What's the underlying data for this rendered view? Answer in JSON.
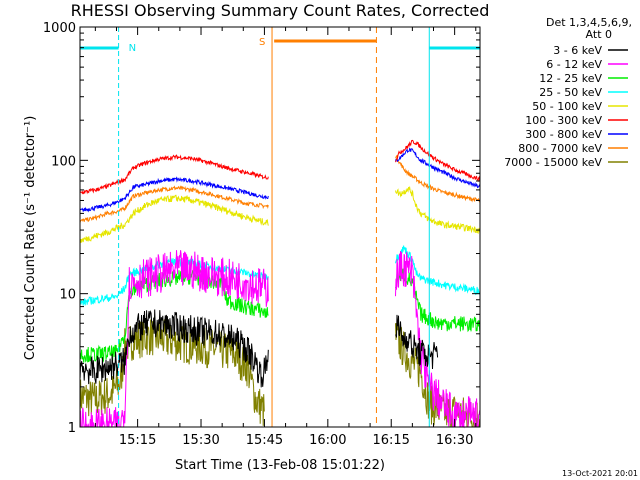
{
  "chart_data": {
    "type": "line",
    "title": "RHESSI Observing Summary Count Rates, Corrected",
    "xlabel": "Start Time (13-Feb-08 15:01:22)",
    "ylabel": "Corrected Count Rate (s⁻¹ detector⁻¹)",
    "y_scale": "log",
    "ylim": [
      1,
      1000
    ],
    "xlim_minutes_after_15_00": [
      1.37,
      96.0
    ],
    "x_ticks": [
      {
        "label": "15:15",
        "minutes": 15
      },
      {
        "label": "15:30",
        "minutes": 30
      },
      {
        "label": "15:45",
        "minutes": 45
      },
      {
        "label": "16:00",
        "minutes": 60
      },
      {
        "label": "16:15",
        "minutes": 75
      },
      {
        "label": "16:30",
        "minutes": 90
      }
    ],
    "y_ticks": [
      {
        "label": "1",
        "value": 1
      },
      {
        "label": "10",
        "value": 10
      },
      {
        "label": "100",
        "value": 100
      },
      {
        "label": "1000",
        "value": 1000
      }
    ],
    "legend_header": [
      "Det 1,3,4,5,6,9,",
      "Att 0"
    ],
    "legend_position": "right",
    "timestamp": "13-Oct-2021 20:01",
    "markers": {
      "night": {
        "label": "N",
        "color": "#00e5ee",
        "bars": [
          [
            1.37,
            10.5
          ],
          [
            84.0,
            96.0
          ]
        ],
        "lines": [
          10.5,
          84.0,
          96.0
        ]
      },
      "saa": {
        "label": "S",
        "color": "#ff7f00",
        "bar": [
          47.3,
          71.5
        ],
        "solid_line": 46.8,
        "dashed_line": 71.5
      }
    },
    "series": [
      {
        "name": "3 - 6 keV",
        "color": "#000000",
        "gap": [
          46,
          76
        ],
        "points": [
          [
            1.4,
            2.9
          ],
          [
            4,
            2.6
          ],
          [
            8,
            2.8
          ],
          [
            12,
            3.1
          ],
          [
            13,
            5
          ],
          [
            15,
            5.5
          ],
          [
            18,
            6
          ],
          [
            22,
            5.8
          ],
          [
            26,
            5.5
          ],
          [
            30,
            5.2
          ],
          [
            34,
            5
          ],
          [
            38,
            4.5
          ],
          [
            41,
            3.8
          ],
          [
            43,
            3
          ],
          [
            44,
            2.5
          ],
          [
            45,
            2.6
          ],
          [
            46,
            3.5
          ]
        ],
        "points2": [
          [
            76,
            6
          ],
          [
            77,
            5.2
          ],
          [
            78,
            4.5
          ],
          [
            79,
            4.8
          ],
          [
            80,
            4
          ],
          [
            82,
            3.6
          ],
          [
            84,
            3.4
          ],
          [
            86,
            3.5
          ]
        ]
      },
      {
        "name": "6 - 12 keV",
        "color": "#ff00ff",
        "gap": [
          46,
          76
        ],
        "points": [
          [
            1.4,
            1
          ],
          [
            11,
            1
          ],
          [
            12,
            1.5
          ],
          [
            13,
            12
          ],
          [
            16,
            13
          ],
          [
            20,
            14
          ],
          [
            24,
            15
          ],
          [
            28,
            15
          ],
          [
            32,
            14
          ],
          [
            36,
            13
          ],
          [
            40,
            12.5
          ],
          [
            43,
            11.5
          ],
          [
            45,
            11
          ],
          [
            46,
            11
          ]
        ],
        "points2": [
          [
            76,
            13
          ],
          [
            77,
            15
          ],
          [
            78,
            16
          ],
          [
            79,
            15
          ],
          [
            80,
            14
          ],
          [
            81,
            7
          ],
          [
            82,
            3.5
          ],
          [
            84,
            2
          ],
          [
            87,
            1.5
          ],
          [
            90,
            1.2
          ],
          [
            96,
            1.2
          ]
        ]
      },
      {
        "name": "12 - 25 keV",
        "color": "#00ee00",
        "gap": [
          46,
          76
        ],
        "points": [
          [
            1.4,
            3.5
          ],
          [
            5,
            3.5
          ],
          [
            10,
            3.6
          ],
          [
            12,
            5
          ],
          [
            13,
            10
          ],
          [
            16,
            11.5
          ],
          [
            20,
            12.5
          ],
          [
            24,
            13
          ],
          [
            28,
            13.5
          ],
          [
            32,
            12.5
          ],
          [
            35,
            12
          ],
          [
            36,
            9
          ],
          [
            40,
            8
          ],
          [
            44,
            7.5
          ],
          [
            46,
            7
          ]
        ],
        "points2": [
          [
            76,
            12
          ],
          [
            77,
            13.5
          ],
          [
            78,
            14
          ],
          [
            79,
            13
          ],
          [
            80,
            12
          ],
          [
            81,
            9
          ],
          [
            82,
            7
          ],
          [
            84,
            6.5
          ],
          [
            86,
            6
          ],
          [
            90,
            6
          ],
          [
            96,
            5.8
          ]
        ]
      },
      {
        "name": "25 - 50 keV",
        "color": "#00ffff",
        "gap": [
          46,
          76
        ],
        "points": [
          [
            1.4,
            8.5
          ],
          [
            5,
            9
          ],
          [
            10,
            9.5
          ],
          [
            12,
            11
          ],
          [
            13,
            14
          ],
          [
            16,
            15
          ],
          [
            20,
            16.5
          ],
          [
            24,
            17.5
          ],
          [
            28,
            17
          ],
          [
            32,
            16
          ],
          [
            36,
            15
          ],
          [
            40,
            14.5
          ],
          [
            44,
            13.5
          ],
          [
            46,
            13.5
          ]
        ],
        "points2": [
          [
            76,
            18
          ],
          [
            77,
            20
          ],
          [
            78,
            22
          ],
          [
            79,
            20
          ],
          [
            80,
            18
          ],
          [
            81,
            14
          ],
          [
            82,
            13
          ],
          [
            84,
            12.5
          ],
          [
            88,
            11.5
          ],
          [
            92,
            11
          ],
          [
            96,
            10.5
          ]
        ]
      },
      {
        "name": "50 - 100 keV",
        "color": "#e6e600",
        "gap": [
          46,
          76
        ],
        "points": [
          [
            1.4,
            25
          ],
          [
            5,
            27
          ],
          [
            8,
            29
          ],
          [
            11,
            32
          ],
          [
            12,
            33
          ],
          [
            14,
            40
          ],
          [
            17,
            46
          ],
          [
            20,
            50
          ],
          [
            24,
            52
          ],
          [
            28,
            50
          ],
          [
            32,
            46
          ],
          [
            36,
            42
          ],
          [
            40,
            38
          ],
          [
            44,
            35
          ],
          [
            46,
            34
          ]
        ],
        "points2": [
          [
            76,
            60
          ],
          [
            77,
            56
          ],
          [
            78,
            58
          ],
          [
            79,
            62
          ],
          [
            80,
            56
          ],
          [
            81,
            45
          ],
          [
            82,
            40
          ],
          [
            84,
            36
          ],
          [
            87,
            33
          ],
          [
            90,
            32
          ],
          [
            93,
            31
          ],
          [
            96,
            30
          ]
        ]
      },
      {
        "name": "100 - 300 keV",
        "color": "#ff0000",
        "gap": [
          46,
          76
        ],
        "points": [
          [
            1.4,
            57
          ],
          [
            5,
            60
          ],
          [
            8,
            64
          ],
          [
            11,
            70
          ],
          [
            12,
            72
          ],
          [
            14,
            88
          ],
          [
            17,
            96
          ],
          [
            20,
            102
          ],
          [
            24,
            106
          ],
          [
            28,
            103
          ],
          [
            32,
            96
          ],
          [
            36,
            88
          ],
          [
            40,
            82
          ],
          [
            44,
            76
          ],
          [
            46,
            74
          ]
        ],
        "points2": [
          [
            76,
            100
          ],
          [
            77,
            115
          ],
          [
            78,
            120
          ],
          [
            79,
            128
          ],
          [
            80,
            138
          ],
          [
            81,
            135
          ],
          [
            82,
            125
          ],
          [
            84,
            110
          ],
          [
            87,
            95
          ],
          [
            90,
            85
          ],
          [
            93,
            78
          ],
          [
            96,
            72
          ]
        ]
      },
      {
        "name": "300 - 800 keV",
        "color": "#0000ff",
        "gap": [
          46,
          76
        ],
        "points": [
          [
            1.4,
            42
          ],
          [
            5,
            44
          ],
          [
            8,
            46
          ],
          [
            11,
            50
          ],
          [
            12,
            52
          ],
          [
            14,
            63
          ],
          [
            17,
            66
          ],
          [
            20,
            70
          ],
          [
            24,
            72
          ],
          [
            28,
            70
          ],
          [
            32,
            66
          ],
          [
            36,
            62
          ],
          [
            40,
            58
          ],
          [
            44,
            54
          ],
          [
            46,
            53
          ]
        ],
        "points2": [
          [
            76,
            98
          ],
          [
            77,
            104
          ],
          [
            78,
            112
          ],
          [
            79,
            120
          ],
          [
            80,
            118
          ],
          [
            81,
            108
          ],
          [
            82,
            100
          ],
          [
            84,
            92
          ],
          [
            87,
            82
          ],
          [
            90,
            74
          ],
          [
            93,
            68
          ],
          [
            96,
            63
          ]
        ]
      },
      {
        "name": "800 - 7000 keV",
        "color": "#ff7f00",
        "gap": [
          46,
          76
        ],
        "points": [
          [
            1.4,
            35
          ],
          [
            5,
            37
          ],
          [
            8,
            40
          ],
          [
            11,
            42
          ],
          [
            12,
            44
          ],
          [
            14,
            54
          ],
          [
            17,
            57
          ],
          [
            20,
            60
          ],
          [
            24,
            62
          ],
          [
            28,
            60
          ],
          [
            32,
            56
          ],
          [
            36,
            52
          ],
          [
            40,
            48
          ],
          [
            44,
            46
          ],
          [
            46,
            45
          ]
        ],
        "points2": [
          [
            76,
            110
          ],
          [
            77,
            96
          ],
          [
            78,
            86
          ],
          [
            79,
            80
          ],
          [
            80,
            76
          ],
          [
            81,
            72
          ],
          [
            82,
            68
          ],
          [
            84,
            63
          ],
          [
            87,
            58
          ],
          [
            90,
            55
          ],
          [
            93,
            52
          ],
          [
            96,
            50
          ]
        ]
      },
      {
        "name": "7000 - 15000 keV",
        "color": "#808000",
        "gap": [
          46,
          76
        ],
        "points": [
          [
            1.4,
            1.7
          ],
          [
            5,
            1.6
          ],
          [
            9,
            1.8
          ],
          [
            11,
            2.2
          ],
          [
            12,
            4
          ],
          [
            14,
            4.5
          ],
          [
            18,
            4.8
          ],
          [
            22,
            4.5
          ],
          [
            26,
            4.2
          ],
          [
            30,
            4
          ],
          [
            34,
            3.8
          ],
          [
            38,
            3.5
          ],
          [
            41,
            2.8
          ],
          [
            43,
            1.6
          ],
          [
            45,
            1.3
          ]
        ],
        "points2": [
          [
            76,
            4.8
          ],
          [
            78,
            3.8
          ],
          [
            80,
            3
          ],
          [
            82,
            2.6
          ],
          [
            84,
            1.5
          ],
          [
            87,
            1.3
          ],
          [
            90,
            1.3
          ],
          [
            93,
            1.2
          ],
          [
            96,
            1.2
          ]
        ]
      }
    ]
  }
}
